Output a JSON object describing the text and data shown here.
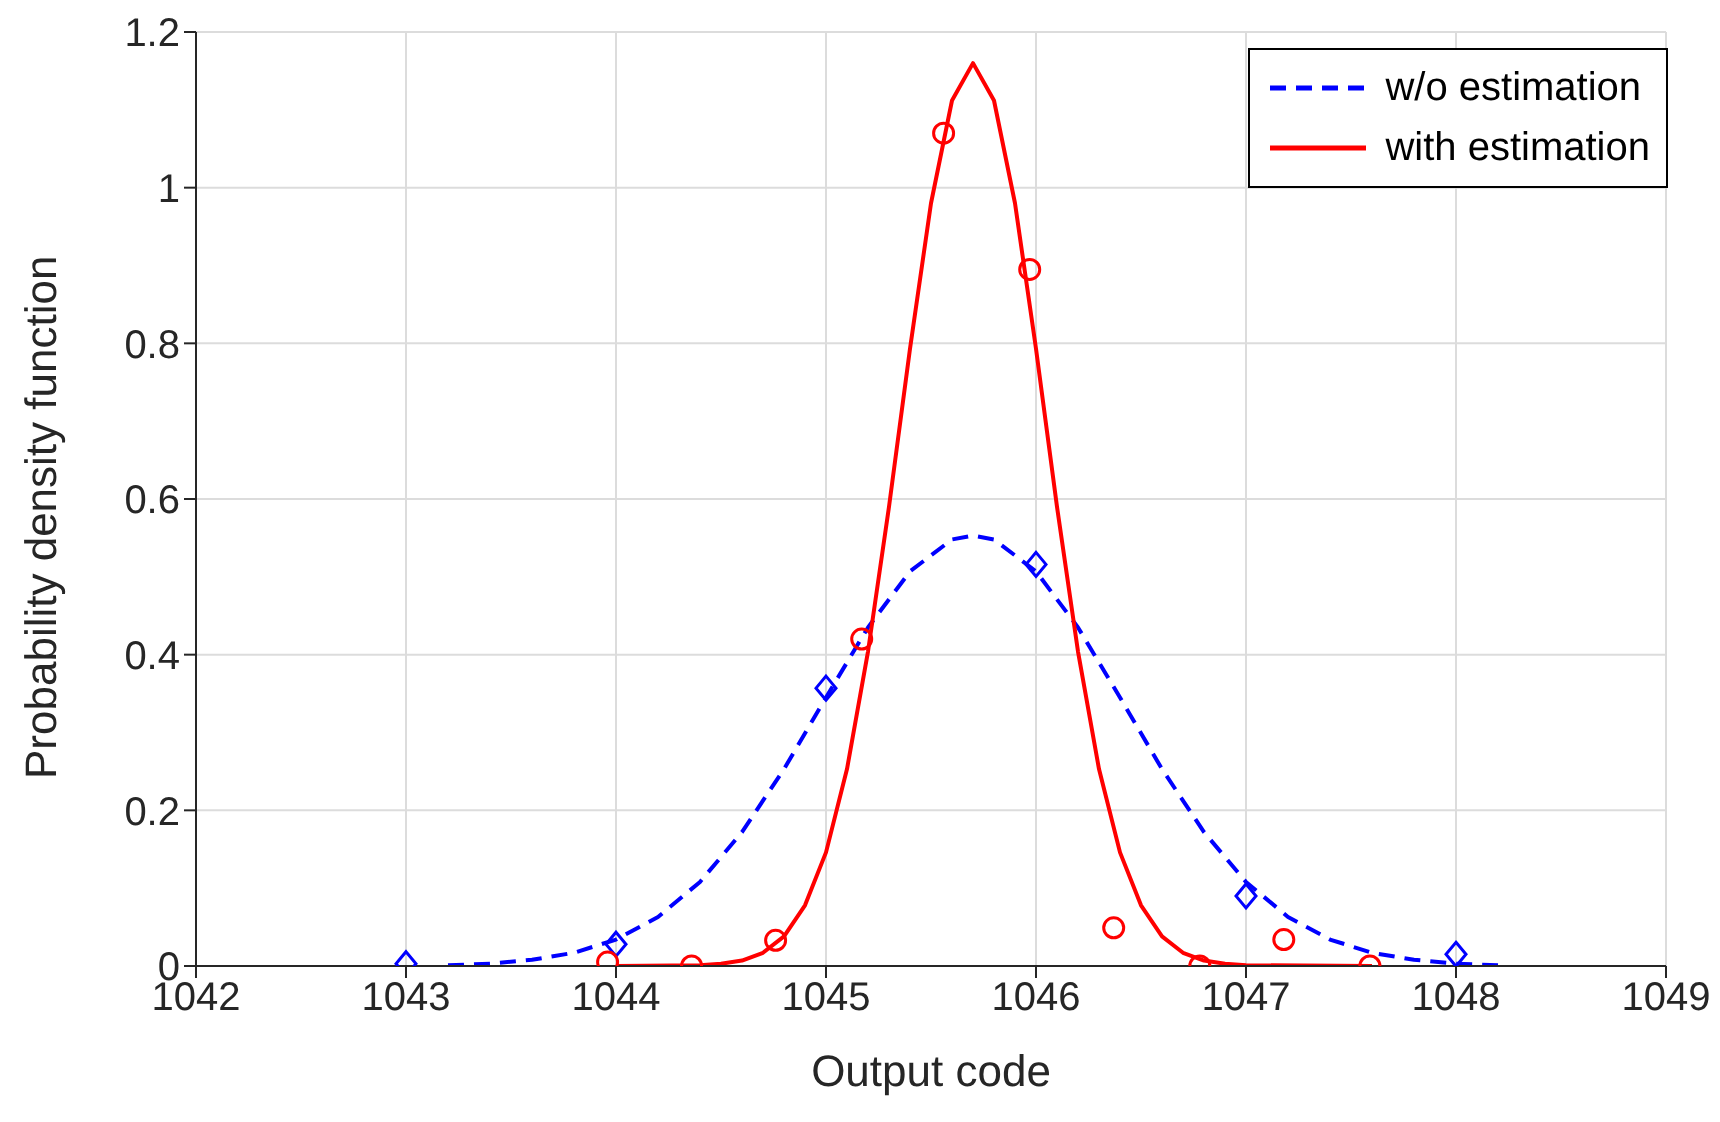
{
  "chart_data": {
    "type": "line",
    "xlabel": "Output code",
    "ylabel": "Probability density function",
    "xlim": [
      1042,
      1049
    ],
    "xticks": [
      1042,
      1043,
      1044,
      1045,
      1046,
      1047,
      1048,
      1049
    ],
    "ylim": [
      0,
      1.2
    ],
    "yticks": [
      0,
      0.2,
      0.4,
      0.6,
      0.8,
      1,
      1.2
    ],
    "grid": true,
    "legend": "top right",
    "series": [
      {
        "name": "w/o estimation",
        "color": "#0000ff",
        "line_style": "dashed",
        "marker": "none",
        "x": [
          1043.2,
          1043.4,
          1043.6,
          1043.8,
          1044.0,
          1044.2,
          1044.4,
          1044.6,
          1044.8,
          1045.0,
          1045.2,
          1045.4,
          1045.6,
          1045.7,
          1045.8,
          1046.0,
          1046.2,
          1046.4,
          1046.6,
          1046.8,
          1047.0,
          1047.2,
          1047.4,
          1047.6,
          1047.8,
          1048.0,
          1048.2
        ],
        "values": [
          0.001,
          0.003,
          0.008,
          0.017,
          0.034,
          0.063,
          0.108,
          0.172,
          0.253,
          0.345,
          0.435,
          0.507,
          0.548,
          0.553,
          0.548,
          0.507,
          0.435,
          0.345,
          0.253,
          0.172,
          0.108,
          0.063,
          0.034,
          0.017,
          0.008,
          0.003,
          0.001
        ]
      },
      {
        "name": "with estimation",
        "color": "#ff0000",
        "line_style": "solid",
        "marker": "none",
        "x": [
          1044.0,
          1044.4,
          1044.5,
          1044.6,
          1044.7,
          1044.8,
          1044.9,
          1045.0,
          1045.1,
          1045.2,
          1045.3,
          1045.4,
          1045.5,
          1045.6,
          1045.7,
          1045.8,
          1045.9,
          1046.0,
          1046.1,
          1046.2,
          1046.3,
          1046.4,
          1046.5,
          1046.6,
          1046.7,
          1046.8,
          1046.9,
          1047.0,
          1047.6
        ],
        "values": [
          0,
          0.001,
          0.003,
          0.007,
          0.017,
          0.038,
          0.078,
          0.146,
          0.253,
          0.404,
          0.59,
          0.793,
          0.98,
          1.112,
          1.16,
          1.112,
          0.98,
          0.793,
          0.59,
          0.404,
          0.253,
          0.146,
          0.078,
          0.038,
          0.017,
          0.007,
          0.003,
          0.001,
          0
        ]
      },
      {
        "type": "scatter",
        "color": "#0000ff",
        "marker": "diamond",
        "x": [
          1043,
          1044,
          1045,
          1046,
          1047,
          1048
        ],
        "values": [
          0.003,
          0.028,
          0.357,
          0.516,
          0.09,
          0.015
        ]
      },
      {
        "type": "scatter",
        "color": "#ff0000",
        "marker": "circle",
        "x": [
          1043.96,
          1044.36,
          1044.76,
          1045.17,
          1045.56,
          1045.97,
          1046.37,
          1046.78,
          1047.18,
          1047.59
        ],
        "values": [
          0.005,
          0,
          0.033,
          0.42,
          1.07,
          0.895,
          0.049,
          0,
          0.034,
          0
        ]
      }
    ]
  }
}
